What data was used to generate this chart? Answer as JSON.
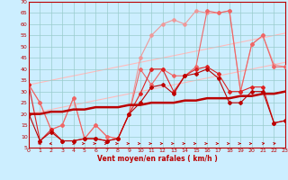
{
  "xlabel": "Vent moyen/en rafales ( km/h )",
  "background_color": "#cceeff",
  "grid_color": "#99cccc",
  "x": [
    0,
    1,
    2,
    3,
    4,
    5,
    6,
    7,
    8,
    9,
    10,
    11,
    12,
    13,
    14,
    15,
    16,
    17,
    18,
    19,
    20,
    21,
    22,
    23
  ],
  "line_gust_upper": [
    33,
    25,
    13,
    15,
    27,
    9,
    15,
    10,
    9,
    20,
    45,
    55,
    60,
    62,
    60,
    66,
    65,
    65,
    66,
    30,
    51,
    55,
    42,
    41
  ],
  "line_gust_lower": [
    33,
    25,
    13,
    15,
    27,
    9,
    15,
    10,
    9,
    20,
    40,
    33,
    40,
    37,
    37,
    41,
    66,
    65,
    66,
    30,
    51,
    55,
    41,
    41
  ],
  "line_mean_upper": [
    33,
    8,
    13,
    8,
    8,
    9,
    9,
    8,
    9,
    20,
    29,
    40,
    40,
    30,
    37,
    40,
    41,
    38,
    30,
    30,
    32,
    32,
    16,
    17
  ],
  "line_mean_lower": [
    20,
    8,
    12,
    8,
    8,
    9,
    9,
    8,
    9,
    20,
    25,
    32,
    33,
    29,
    37,
    38,
    40,
    36,
    25,
    25,
    30,
    30,
    16,
    17
  ],
  "trend_upper": [
    33,
    34,
    35,
    36,
    37,
    38,
    39,
    40,
    41,
    42,
    43,
    44,
    45,
    46,
    47,
    48,
    49,
    50,
    51,
    52,
    53,
    54,
    55,
    56
  ],
  "trend_lower": [
    20,
    21,
    22,
    23,
    24,
    25,
    26,
    27,
    28,
    29,
    30,
    31,
    32,
    33,
    34,
    35,
    36,
    37,
    38,
    39,
    40,
    41,
    42,
    43
  ],
  "trend_mean": [
    20,
    20,
    21,
    21,
    22,
    22,
    23,
    23,
    23,
    24,
    24,
    25,
    25,
    25,
    26,
    26,
    27,
    27,
    27,
    28,
    28,
    29,
    29,
    30
  ],
  "color_dark_red": "#bb0000",
  "color_medium_red": "#dd2222",
  "color_light_red": "#ee6666",
  "color_pale_red": "#ee9999",
  "color_very_pale": "#ffbbbb",
  "ylim": [
    5,
    70
  ],
  "xlim": [
    0,
    23
  ],
  "yticks": [
    5,
    10,
    15,
    20,
    25,
    30,
    35,
    40,
    45,
    50,
    55,
    60,
    65,
    70
  ],
  "xticks": [
    0,
    1,
    2,
    3,
    4,
    5,
    6,
    7,
    8,
    9,
    10,
    11,
    12,
    13,
    14,
    15,
    16,
    17,
    18,
    19,
    20,
    21,
    22,
    23
  ],
  "arrow_directions": [
    270,
    225,
    225,
    180,
    135,
    90,
    90,
    90,
    90,
    90,
    90,
    90,
    90,
    90,
    90,
    90,
    90,
    90,
    90,
    90,
    90,
    45,
    45,
    45
  ]
}
